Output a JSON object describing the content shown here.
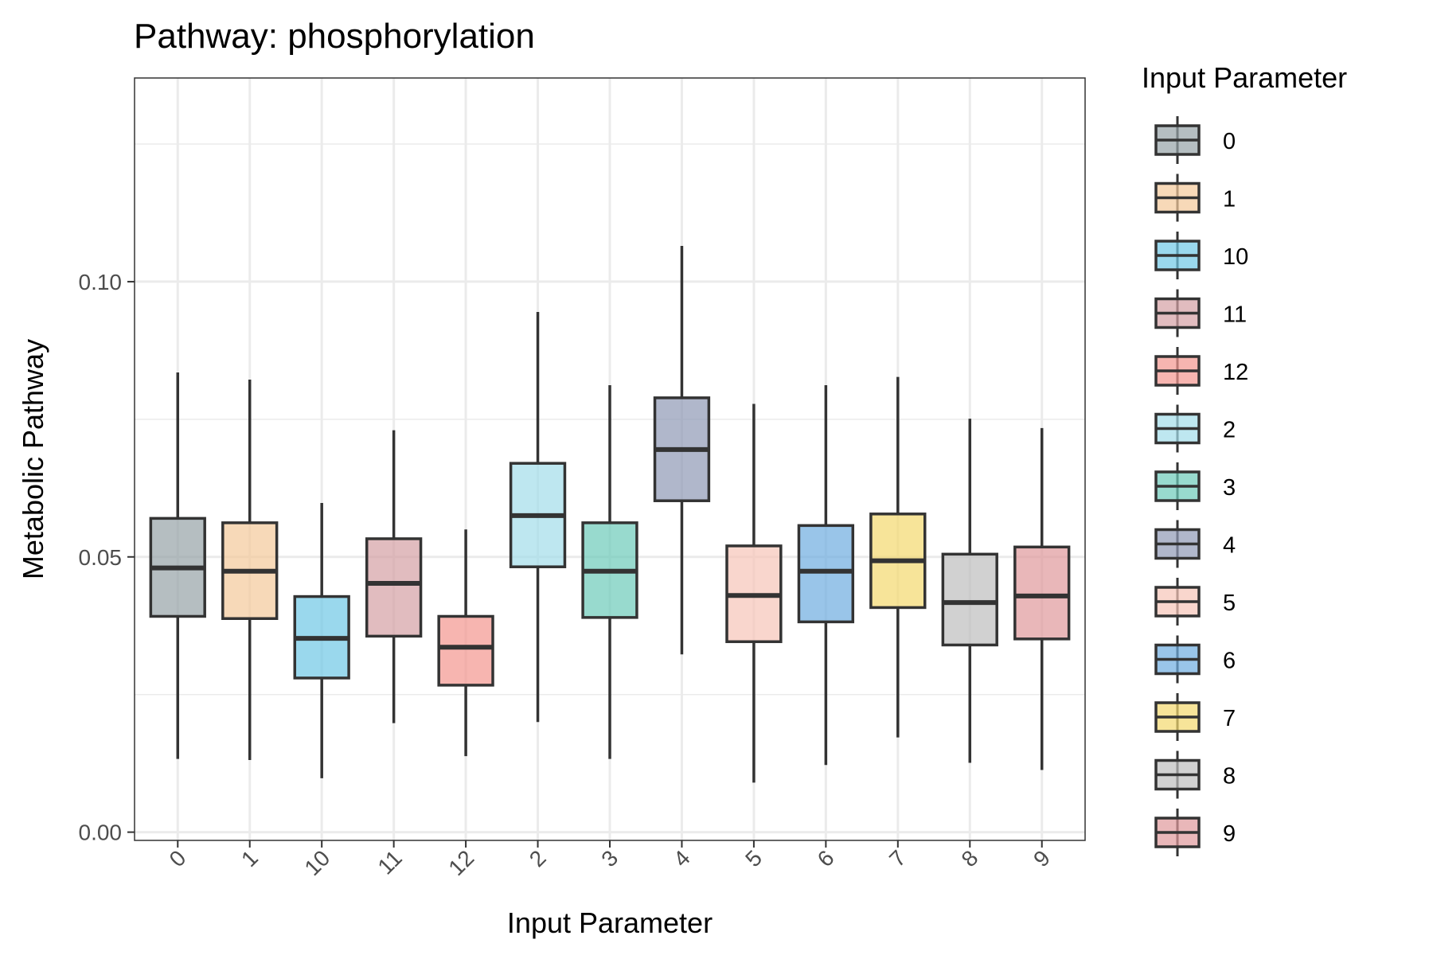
{
  "chart_data": {
    "type": "boxplot",
    "title": "Pathway: phosphorylation",
    "xlabel": "Input Parameter",
    "ylabel": "Metabolic Pathway",
    "ylim": [
      -0.0015,
      0.137
    ],
    "y_ticks": [
      0.0,
      0.05,
      0.1
    ],
    "y_tick_labels": [
      "0.00",
      "0.05",
      "0.10"
    ],
    "grid": true,
    "legend": {
      "title": "Input Parameter",
      "position": "right"
    },
    "categories": [
      "0",
      "1",
      "10",
      "11",
      "12",
      "2",
      "3",
      "4",
      "5",
      "6",
      "7",
      "8",
      "9"
    ],
    "colors": [
      "#95A3A6",
      "#F4C99A",
      "#6FC7E6",
      "#D4A0A4",
      "#F3968F",
      "#A3DDEA",
      "#6CCBB9",
      "#8E98B5",
      "#F6C4B8",
      "#6EACDF",
      "#F4D96E",
      "#BDBDBD",
      "#E0999B"
    ],
    "series": [
      {
        "category": "0",
        "min": 0.0133,
        "q1": 0.0392,
        "median": 0.048,
        "q3": 0.057,
        "max": 0.0835
      },
      {
        "category": "1",
        "min": 0.0131,
        "q1": 0.0388,
        "median": 0.0474,
        "q3": 0.0562,
        "max": 0.0822
      },
      {
        "category": "10",
        "min": 0.0098,
        "q1": 0.028,
        "median": 0.0352,
        "q3": 0.0428,
        "max": 0.0598
      },
      {
        "category": "11",
        "min": 0.0198,
        "q1": 0.0356,
        "median": 0.0452,
        "q3": 0.0533,
        "max": 0.073
      },
      {
        "category": "12",
        "min": 0.0138,
        "q1": 0.0267,
        "median": 0.0336,
        "q3": 0.0392,
        "max": 0.055
      },
      {
        "category": "2",
        "min": 0.02,
        "q1": 0.0482,
        "median": 0.0575,
        "q3": 0.067,
        "max": 0.0945
      },
      {
        "category": "3",
        "min": 0.0133,
        "q1": 0.039,
        "median": 0.0474,
        "q3": 0.0562,
        "max": 0.0812
      },
      {
        "category": "4",
        "min": 0.0323,
        "q1": 0.0602,
        "median": 0.0695,
        "q3": 0.0789,
        "max": 0.1065
      },
      {
        "category": "5",
        "min": 0.009,
        "q1": 0.0346,
        "median": 0.043,
        "q3": 0.052,
        "max": 0.0778
      },
      {
        "category": "6",
        "min": 0.0122,
        "q1": 0.0382,
        "median": 0.0474,
        "q3": 0.0557,
        "max": 0.0812
      },
      {
        "category": "7",
        "min": 0.0172,
        "q1": 0.0408,
        "median": 0.0493,
        "q3": 0.0578,
        "max": 0.0827
      },
      {
        "category": "8",
        "min": 0.0126,
        "q1": 0.034,
        "median": 0.0417,
        "q3": 0.0505,
        "max": 0.0751
      },
      {
        "category": "9",
        "min": 0.0113,
        "q1": 0.0351,
        "median": 0.0429,
        "q3": 0.0518,
        "max": 0.0734
      }
    ]
  }
}
